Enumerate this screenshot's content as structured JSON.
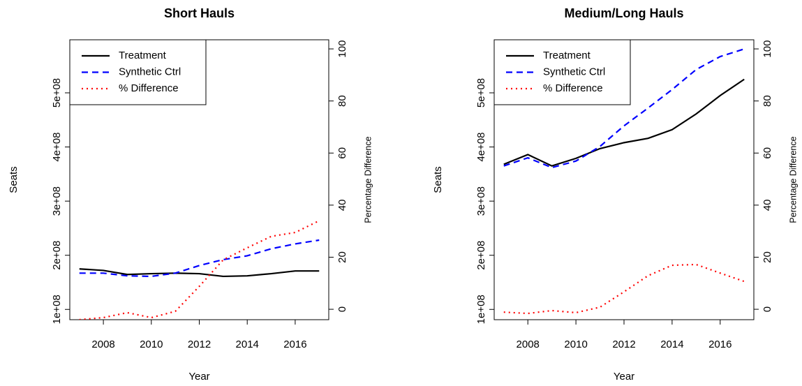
{
  "chart_data": [
    {
      "type": "line",
      "title": "Short Hauls",
      "xlabel": "Year",
      "ylabel": "Seats",
      "y2label": "Percentage Difference",
      "x": [
        2007,
        2008,
        2009,
        2010,
        2011,
        2012,
        2013,
        2014,
        2015,
        2016,
        2017
      ],
      "xlim": [
        2006.6,
        2017.4
      ],
      "xticks": [
        2008,
        2010,
        2012,
        2014,
        2016
      ],
      "ylim": [
        81000000,
        598000000
      ],
      "yticks": [
        {
          "value": 100000000,
          "label": "1e+08"
        },
        {
          "value": 200000000,
          "label": "2e+08"
        },
        {
          "value": 300000000,
          "label": "3e+08"
        },
        {
          "value": 400000000,
          "label": "4e+08"
        },
        {
          "value": 500000000,
          "label": "5e+08"
        }
      ],
      "y2lim": [
        -4,
        103.5
      ],
      "y2ticks": [
        0,
        20,
        40,
        60,
        80,
        100
      ],
      "legend": "topleft",
      "series": [
        {
          "name": "Treatment",
          "color": "#000000",
          "linestyle": "solid",
          "values": [
            174800000,
            172000000,
            164500000,
            166000000,
            167000000,
            166000000,
            161000000,
            162000000,
            166000000,
            171000000,
            171000000
          ]
        },
        {
          "name": "Synthetic Ctrl",
          "color": "#0000ff",
          "linestyle": "dashed",
          "values": [
            167000000,
            167000000,
            162000000,
            161000000,
            167000000,
            181000000,
            192000000,
            199000000,
            212000000,
            221000000,
            228000000
          ]
        },
        {
          "name": "% Difference",
          "color": "#ff0000",
          "linestyle": "dotted",
          "axis": "y2",
          "values": [
            -4,
            -3.2,
            -1.3,
            -3.2,
            -0.8,
            8.8,
            19,
            23.6,
            28,
            29.5,
            34
          ]
        }
      ]
    },
    {
      "type": "line",
      "title": "Medium/Long Hauls",
      "xlabel": "Year",
      "ylabel": "Seats",
      "y2label": "Percentage Difference",
      "x": [
        2007,
        2008,
        2009,
        2010,
        2011,
        2012,
        2013,
        2014,
        2015,
        2016,
        2017
      ],
      "xlim": [
        2006.6,
        2017.4
      ],
      "xticks": [
        2008,
        2010,
        2012,
        2014,
        2016
      ],
      "ylim": [
        81000000,
        598000000
      ],
      "yticks": [
        {
          "value": 100000000,
          "label": "1e+08"
        },
        {
          "value": 200000000,
          "label": "2e+08"
        },
        {
          "value": 300000000,
          "label": "3e+08"
        },
        {
          "value": 400000000,
          "label": "4e+08"
        },
        {
          "value": 500000000,
          "label": "5e+08"
        }
      ],
      "y2lim": [
        -4,
        103.5
      ],
      "y2ticks": [
        0,
        20,
        40,
        60,
        80,
        100
      ],
      "legend": "topleft",
      "series": [
        {
          "name": "Treatment",
          "color": "#000000",
          "linestyle": "solid",
          "values": [
            368000000,
            386000000,
            365000000,
            379000000,
            397000000,
            408000000,
            416000000,
            432000000,
            461000000,
            495000000,
            525000000
          ]
        },
        {
          "name": "Synthetic Ctrl",
          "color": "#0000ff",
          "linestyle": "dashed",
          "values": [
            365000000,
            380000000,
            362000000,
            374000000,
            401000000,
            439000000,
            472000000,
            506000000,
            543000000,
            567000000,
            581000000
          ]
        },
        {
          "name": "% Difference",
          "color": "#ff0000",
          "linestyle": "dotted",
          "axis": "y2",
          "values": [
            -1.1,
            -1.6,
            -0.5,
            -1.3,
            0.8,
            6.7,
            12.9,
            16.9,
            17.2,
            13.9,
            10.7
          ]
        }
      ]
    }
  ]
}
